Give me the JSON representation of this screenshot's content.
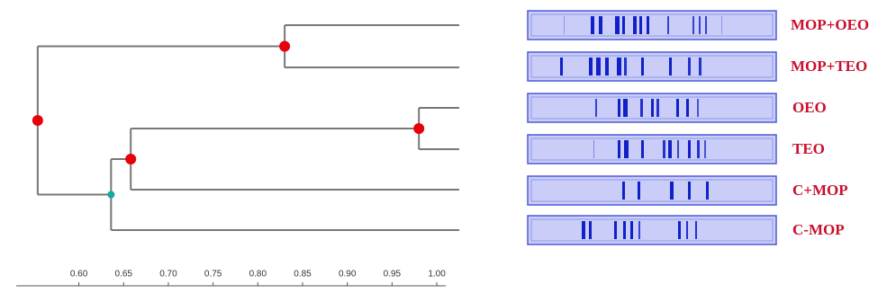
{
  "chart_data": {
    "type": "dendrogram",
    "leaves": [
      "MOP+OEO",
      "MOP+TEO",
      "OEO",
      "TEO",
      "C+MOP",
      "C-MOP"
    ],
    "values": [
      0.83,
      0.98,
      0.658,
      0.636,
      0.554
    ],
    "xlim": [
      0.53,
      1.01
    ],
    "xticks": [
      {
        "value": 0.6,
        "label": "0.60"
      },
      {
        "value": 0.65,
        "label": "0.65"
      },
      {
        "value": 0.7,
        "label": "0.70"
      },
      {
        "value": 0.75,
        "label": "0.75"
      },
      {
        "value": 0.8,
        "label": "0.80"
      },
      {
        "value": 0.85,
        "label": "0.85"
      },
      {
        "value": 0.9,
        "label": "0.90"
      },
      {
        "value": 0.95,
        "label": "0.95"
      },
      {
        "value": 1.0,
        "label": "1.00"
      }
    ]
  }
}
